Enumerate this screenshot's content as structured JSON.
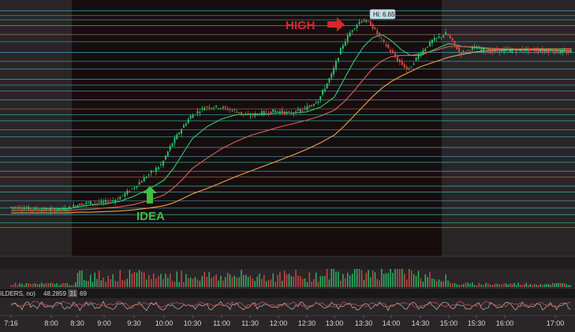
{
  "chart_data": {
    "type": "candlestick",
    "x_ticks": [
      "7:16",
      "8:00",
      "8:30",
      "9:00",
      "9:30",
      "10:00",
      "10:30",
      "11:00",
      "11:30",
      "12:00",
      "12:30",
      "13:00",
      "13:30",
      "14:00",
      "14:30",
      "15:00",
      "15:30",
      "16:00",
      "17:00"
    ],
    "price_range": [
      2.9,
      6.75
    ],
    "price_series": [
      [
        "7:16",
        3.4
      ],
      [
        "7:40",
        3.37
      ],
      [
        "8:00",
        3.35
      ],
      [
        "8:20",
        3.36
      ],
      [
        "8:30",
        3.43
      ],
      [
        "8:45",
        3.47
      ],
      [
        "9:00",
        3.47
      ],
      [
        "9:15",
        3.53
      ],
      [
        "9:30",
        3.7
      ],
      [
        "9:45",
        3.92
      ],
      [
        "10:00",
        4.12
      ],
      [
        "10:10",
        4.45
      ],
      [
        "10:20",
        4.7
      ],
      [
        "10:30",
        4.92
      ],
      [
        "10:45",
        5.08
      ],
      [
        "11:00",
        5.08
      ],
      [
        "11:15",
        5.02
      ],
      [
        "11:30",
        4.93
      ],
      [
        "11:45",
        4.98
      ],
      [
        "12:00",
        5.02
      ],
      [
        "12:15",
        4.97
      ],
      [
        "12:30",
        5.05
      ],
      [
        "12:45",
        5.2
      ],
      [
        "13:00",
        5.65
      ],
      [
        "13:10",
        6.1
      ],
      [
        "13:20",
        6.38
      ],
      [
        "13:30",
        6.55
      ],
      [
        "13:40",
        6.48
      ],
      [
        "13:50",
        6.25
      ],
      [
        "14:00",
        6.05
      ],
      [
        "14:10",
        5.85
      ],
      [
        "14:20",
        5.7
      ],
      [
        "14:30",
        5.95
      ],
      [
        "14:45",
        6.2
      ],
      [
        "15:00",
        6.32
      ],
      [
        "15:15",
        5.98
      ],
      [
        "15:30",
        6.08
      ],
      [
        "15:45",
        6.01
      ],
      [
        "16:00",
        6.03
      ],
      [
        "16:30",
        6.04
      ],
      [
        "17:00",
        6.02
      ],
      [
        "17:20",
        6.0
      ]
    ],
    "overlays": [
      {
        "color": "#2ecc71",
        "values": [
          3.38,
          3.38,
          3.37,
          3.37,
          3.4,
          3.43,
          3.45,
          3.49,
          3.58,
          3.7,
          3.85,
          4.05,
          4.3,
          4.55,
          4.75,
          4.88,
          4.95,
          4.96,
          4.96,
          4.98,
          4.98,
          5.0,
          5.08,
          5.25,
          5.55,
          5.85,
          6.1,
          6.25,
          6.3,
          6.2,
          6.05,
          5.95,
          5.95,
          6.05,
          6.15,
          6.1,
          6.08,
          6.05,
          6.04,
          6.04,
          6.03,
          6.02
        ]
      },
      {
        "color": "#e0605a",
        "values": [
          3.34,
          3.34,
          3.34,
          3.34,
          3.35,
          3.36,
          3.38,
          3.4,
          3.44,
          3.51,
          3.6,
          3.72,
          3.87,
          4.05,
          4.22,
          4.38,
          4.5,
          4.6,
          4.67,
          4.74,
          4.8,
          4.86,
          4.93,
          5.03,
          5.17,
          5.35,
          5.55,
          5.73,
          5.86,
          5.93,
          5.95,
          5.95,
          5.98,
          6.03,
          6.1,
          6.1,
          6.09,
          6.07,
          6.06,
          6.05,
          6.04,
          6.03
        ]
      },
      {
        "color": "#f0a050",
        "values": [
          3.3,
          3.3,
          3.3,
          3.3,
          3.31,
          3.31,
          3.32,
          3.33,
          3.35,
          3.38,
          3.42,
          3.47,
          3.54,
          3.62,
          3.71,
          3.81,
          3.91,
          4.0,
          4.09,
          4.18,
          4.27,
          4.37,
          4.48,
          4.61,
          4.76,
          4.93,
          5.1,
          5.26,
          5.4,
          5.51,
          5.6,
          5.68,
          5.76,
          5.84,
          5.92,
          5.97,
          6.01,
          6.03,
          6.05,
          6.06,
          6.06,
          6.06
        ]
      }
    ],
    "horizontal_levels": [
      6.7,
      6.62,
      6.55,
      6.45,
      6.3,
      6.18,
      6.0,
      5.85,
      5.72,
      5.55,
      5.45,
      5.35,
      5.2,
      5.05,
      4.95,
      4.85,
      4.7,
      4.58,
      4.4,
      4.25,
      4.15,
      4.0,
      3.9,
      3.75,
      3.65,
      3.5,
      3.38,
      3.27,
      3.13,
      3.05
    ],
    "annotations": [
      {
        "text": "HIGH",
        "color": "#d9262b",
        "arrow": "right"
      },
      {
        "text": "IDEA",
        "color": "#3fbf3f",
        "arrow": "up"
      }
    ],
    "hi_label": "Hi: 6.65",
    "indicator_legend": [
      "ILDERS, no)",
      "48.2859",
      "31",
      "69"
    ],
    "sessions": {
      "extended_left_end": "8:30",
      "extended_right_start": "15:00"
    }
  }
}
